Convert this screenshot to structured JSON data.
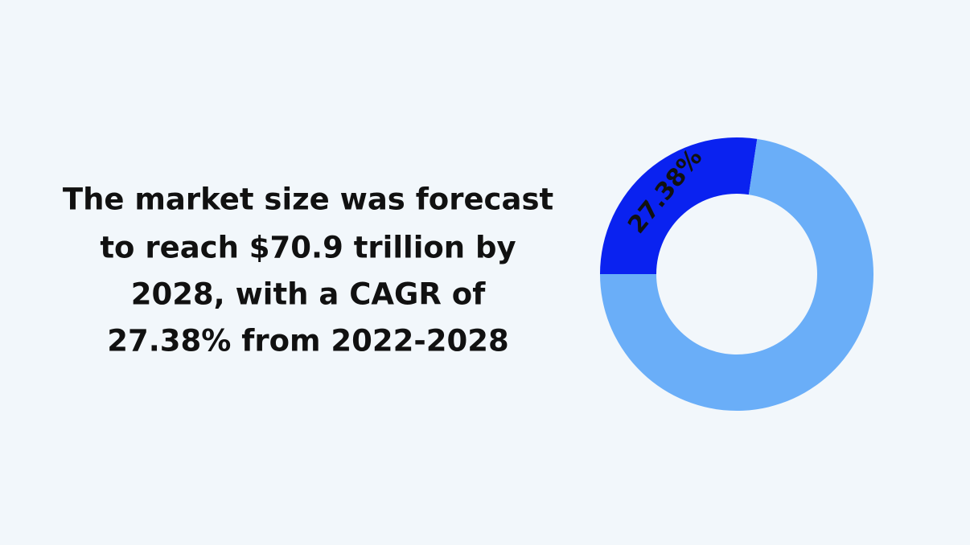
{
  "chart_data": {
    "type": "donut",
    "annotations": [
      "The market size was forecast",
      "to reach $70.9 trillion by",
      "2028, with a CAGR of",
      "27.38% from 2022-2028"
    ],
    "values": [
      27.38,
      72.62
    ],
    "value_labels": [
      "27.38%",
      null
    ],
    "colors": [
      "#0a22f0",
      "#6aaef8"
    ]
  }
}
